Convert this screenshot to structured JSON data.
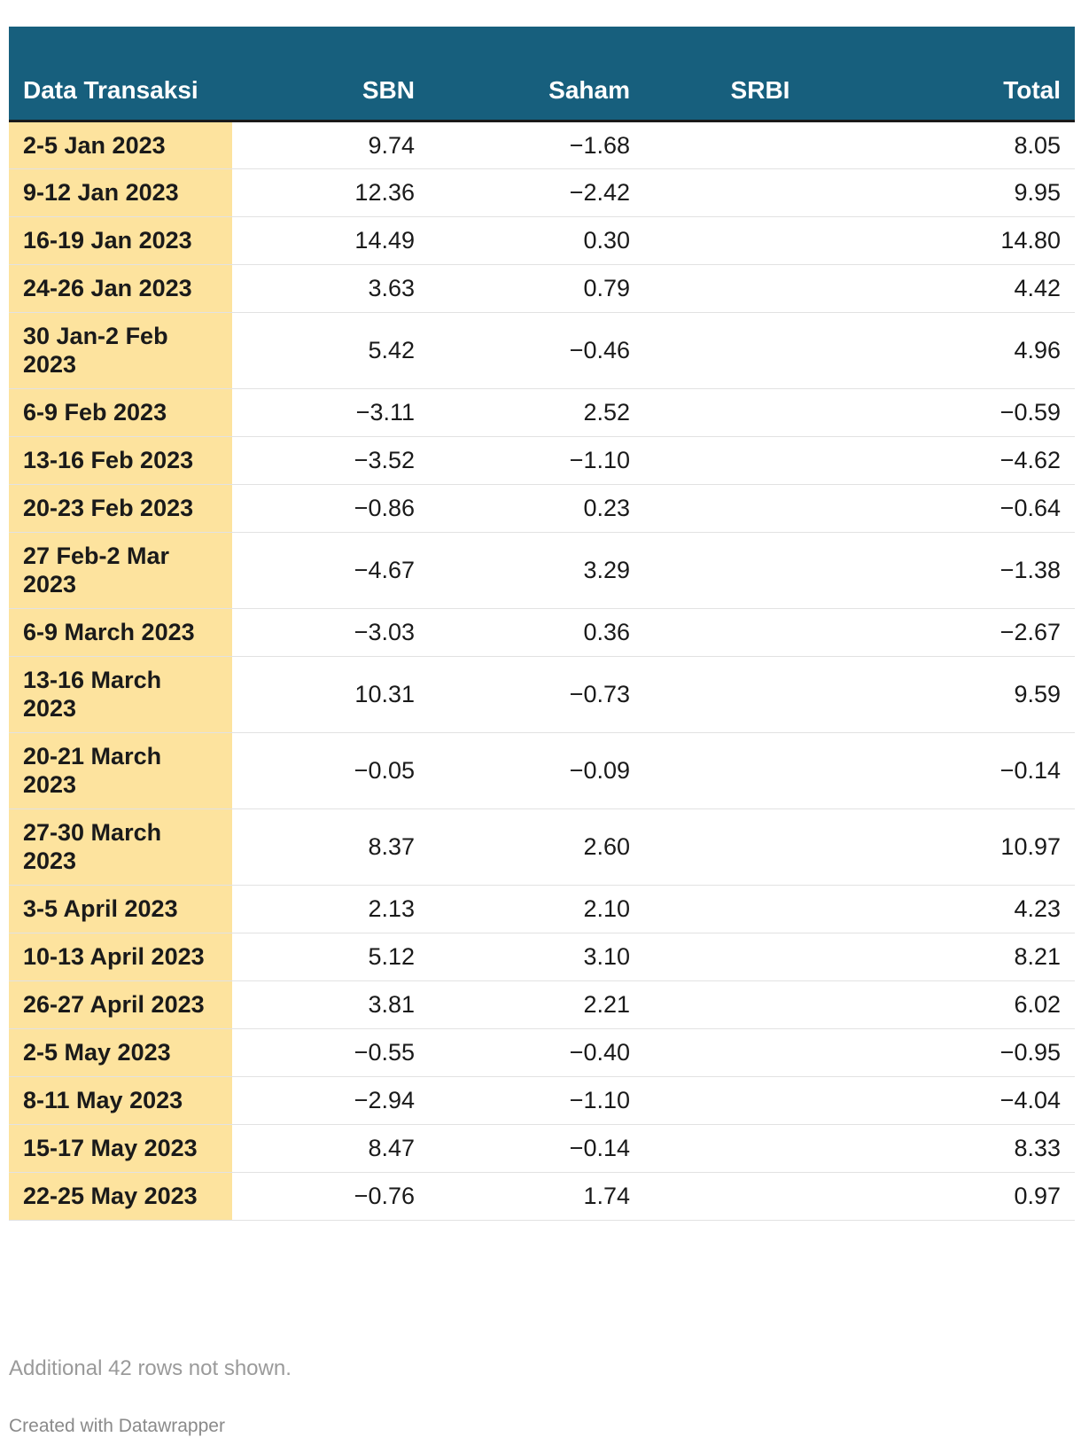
{
  "chart_data": {
    "type": "table",
    "columns": [
      "Data Transaksi",
      "SBN",
      "Saham",
      "SRBI",
      "Total"
    ],
    "rows": [
      {
        "label": "2-5 Jan 2023",
        "sbn": "9.74",
        "saham": "−1.68",
        "srbi": "",
        "total": "8.05"
      },
      {
        "label": "9-12 Jan 2023",
        "sbn": "12.36",
        "saham": "−2.42",
        "srbi": "",
        "total": "9.95"
      },
      {
        "label": "16-19 Jan 2023",
        "sbn": "14.49",
        "saham": "0.30",
        "srbi": "",
        "total": "14.80"
      },
      {
        "label": "24-26 Jan 2023",
        "sbn": "3.63",
        "saham": "0.79",
        "srbi": "",
        "total": "4.42"
      },
      {
        "label": "30 Jan-2 Feb 2023",
        "sbn": "5.42",
        "saham": "−0.46",
        "srbi": "",
        "total": "4.96"
      },
      {
        "label": "6-9 Feb 2023",
        "sbn": "−3.11",
        "saham": "2.52",
        "srbi": "",
        "total": "−0.59"
      },
      {
        "label": "13-16 Feb 2023",
        "sbn": "−3.52",
        "saham": "−1.10",
        "srbi": "",
        "total": "−4.62"
      },
      {
        "label": "20-23 Feb 2023",
        "sbn": "−0.86",
        "saham": "0.23",
        "srbi": "",
        "total": "−0.64"
      },
      {
        "label": "27 Feb-2 Mar 2023",
        "sbn": "−4.67",
        "saham": "3.29",
        "srbi": "",
        "total": "−1.38"
      },
      {
        "label": "6-9 March 2023",
        "sbn": "−3.03",
        "saham": "0.36",
        "srbi": "",
        "total": "−2.67"
      },
      {
        "label": "13-16 March 2023",
        "sbn": "10.31",
        "saham": "−0.73",
        "srbi": "",
        "total": "9.59"
      },
      {
        "label": "20-21 March 2023",
        "sbn": "−0.05",
        "saham": "−0.09",
        "srbi": "",
        "total": "−0.14"
      },
      {
        "label": "27-30 March 2023",
        "sbn": "8.37",
        "saham": "2.60",
        "srbi": "",
        "total": "10.97"
      },
      {
        "label": "3-5 April 2023",
        "sbn": "2.13",
        "saham": "2.10",
        "srbi": "",
        "total": "4.23"
      },
      {
        "label": "10-13 April 2023",
        "sbn": "5.12",
        "saham": "3.10",
        "srbi": "",
        "total": "8.21"
      },
      {
        "label": "26-27 April 2023",
        "sbn": "3.81",
        "saham": "2.21",
        "srbi": "",
        "total": "6.02"
      },
      {
        "label": "2-5 May 2023",
        "sbn": "−0.55",
        "saham": "−0.40",
        "srbi": "",
        "total": "−0.95"
      },
      {
        "label": "8-11 May 2023",
        "sbn": "−2.94",
        "saham": "−1.10",
        "srbi": "",
        "total": "−4.04"
      },
      {
        "label": "15-17 May 2023",
        "sbn": "8.47",
        "saham": "−0.14",
        "srbi": "",
        "total": "8.33"
      },
      {
        "label": "22-25 May 2023",
        "sbn": "−0.76",
        "saham": "1.74",
        "srbi": "",
        "total": "0.97"
      }
    ],
    "header_color": "#175f7d",
    "label_column_color": "#fde39e"
  },
  "footer": {
    "note": "Additional 42 rows not shown.",
    "credit": "Created with Datawrapper"
  }
}
